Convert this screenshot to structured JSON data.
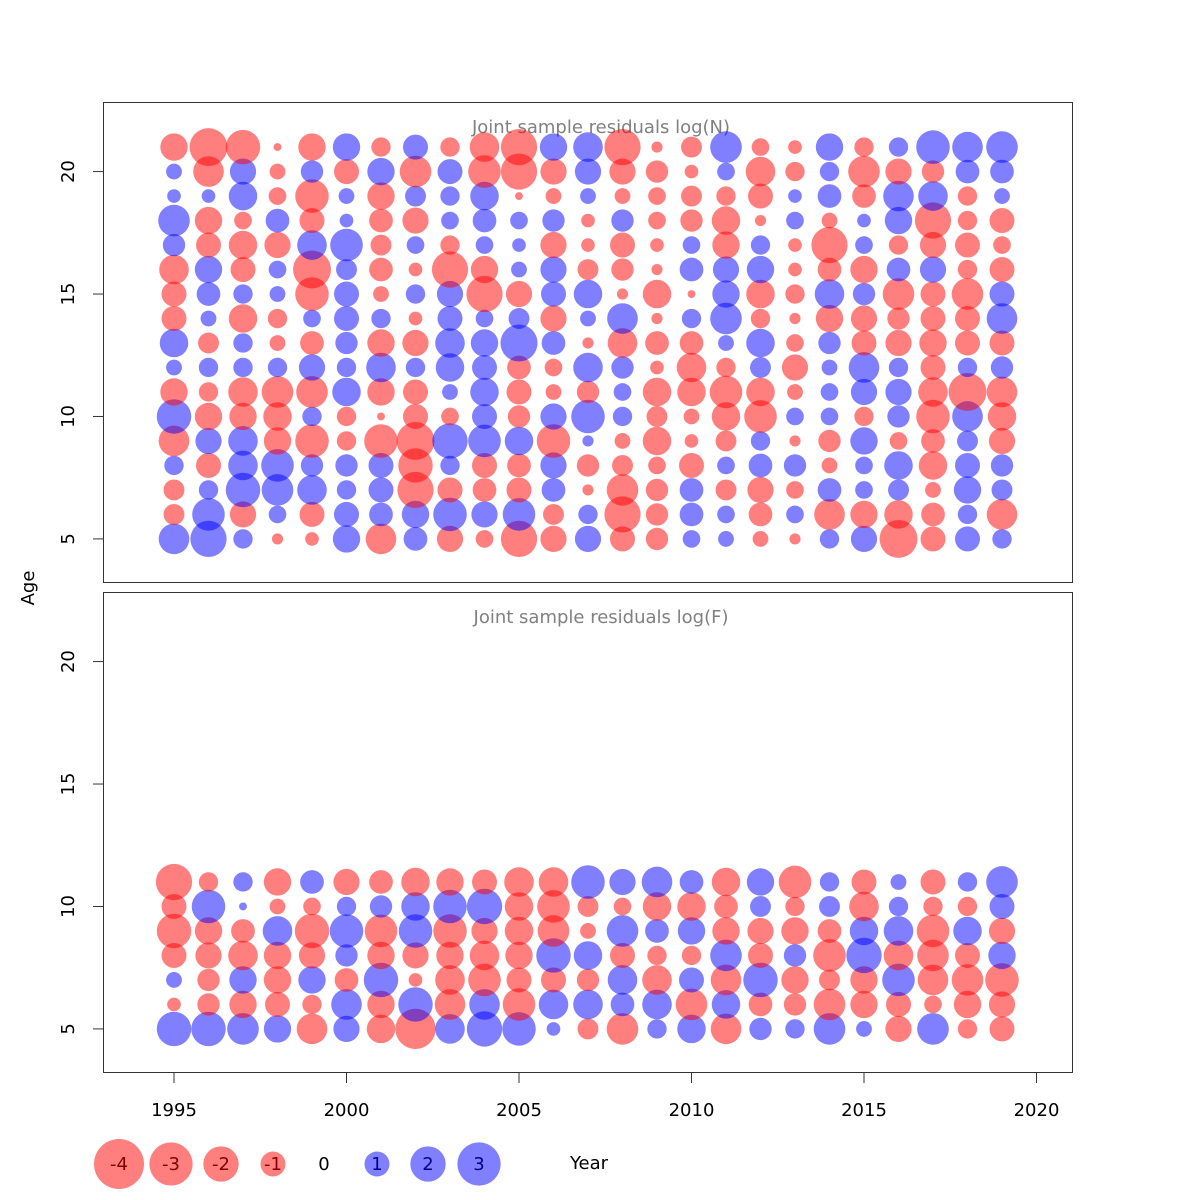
{
  "chart_data": {
    "type": "scatter",
    "subtype": "bubble",
    "xlabel": "Year",
    "ylabel": "Age",
    "xlim": [
      1993,
      2021
    ],
    "ylim": [
      3.2,
      22.8
    ],
    "x_ticks": [
      1995,
      2000,
      2005,
      2010,
      2015,
      2020
    ],
    "y_ticks": [
      5,
      10,
      15,
      20
    ],
    "colors": {
      "positive": "#0000ff",
      "negative": "#ff0000",
      "opacity": 0.5
    },
    "legend": [
      {
        "label": "-4",
        "value": -4
      },
      {
        "label": "-3",
        "value": -3
      },
      {
        "label": "-2",
        "value": -2
      },
      {
        "label": "-1",
        "value": -1
      },
      {
        "label": "0",
        "value": 0
      },
      {
        "label": "1",
        "value": 1
      },
      {
        "label": "2",
        "value": 2
      },
      {
        "label": "3",
        "value": 3
      }
    ],
    "panels": [
      {
        "title": "Joint sample residuals log(N)",
        "years": [
          1995,
          1996,
          1997,
          1998,
          1999,
          2000,
          2001,
          2002,
          2003,
          2004,
          2005,
          2006,
          2007,
          2008,
          2009,
          2010,
          2011,
          2012,
          2013,
          2014,
          2015,
          2016,
          2017,
          2018,
          2019
        ],
        "ages": [
          5,
          6,
          7,
          8,
          9,
          10,
          11,
          12,
          13,
          14,
          15,
          16,
          17,
          18,
          19,
          20,
          21
        ],
        "residuals": [
          [
            1.5,
            -0.7,
            -0.7,
            0.6,
            -1.5,
            1.9,
            -1.2,
            0.4,
            1.3,
            -1.0,
            -1.0,
            -1.4,
            0.8,
            1.6,
            0.3,
            0.4,
            -1.2
          ],
          [
            2.1,
            1.7,
            0.6,
            -1.0,
            1.1,
            -1.2,
            -0.6,
            0.6,
            -0.7,
            0.4,
            0.9,
            1.2,
            -1.0,
            -1.2,
            0.3,
            -1.5,
            -2.3
          ],
          [
            0.6,
            -1.1,
            1.9,
            1.4,
            1.4,
            -1.2,
            -1.4,
            0.6,
            0.6,
            -1.3,
            0.6,
            -1.0,
            -1.3,
            -0.5,
            1.3,
            1.1,
            -1.9
          ],
          [
            -0.2,
            0.5,
            1.6,
            1.7,
            -1.2,
            -1.3,
            -1.6,
            0.6,
            -0.4,
            -0.6,
            0.4,
            0.5,
            -1.1,
            0.9,
            -0.5,
            -0.4,
            -0.1
          ],
          [
            -0.3,
            -1.0,
            1.4,
            0.8,
            -1.8,
            0.6,
            -1.6,
            1.1,
            -0.9,
            0.5,
            -1.8,
            -2.3,
            1.4,
            -1.0,
            -1.8,
            0.8,
            -1.2
          ],
          [
            1.2,
            1.0,
            0.6,
            0.8,
            -0.6,
            -0.6,
            1.3,
            0.6,
            0.8,
            1.0,
            1.0,
            0.7,
            1.7,
            0.3,
            0.4,
            -1.0,
            1.2
          ],
          [
            -1.5,
            0.9,
            1.0,
            1.0,
            -1.8,
            -0.1,
            -1.2,
            1.4,
            -1.2,
            0.6,
            -0.4,
            -0.9,
            -0.7,
            -0.9,
            -1.2,
            1.2,
            -0.6
          ],
          [
            0.9,
            1.2,
            -2.1,
            -1.9,
            -2.3,
            -1.0,
            -1.0,
            0.6,
            -1.1,
            -0.3,
            0.6,
            -0.3,
            0.5,
            -1.1,
            0.7,
            -1.6,
            1.0
          ],
          [
            -1.1,
            1.8,
            -1.0,
            0.6,
            2.0,
            -0.5,
            0.4,
            1.3,
            1.4,
            1.0,
            1.1,
            -2.1,
            -0.6,
            0.5,
            0.6,
            1.0,
            -0.6
          ],
          [
            -0.5,
            1.1,
            -0.9,
            -1.0,
            1.7,
            1.0,
            1.3,
            1.0,
            1.2,
            0.5,
            -2.1,
            -1.2,
            0.5,
            0.9,
            1.3,
            -1.7,
            -1.4
          ],
          [
            -2.1,
            1.7,
            -1.0,
            -0.9,
            1.3,
            -0.8,
            -1.0,
            -0.9,
            2.2,
            0.7,
            -1.1,
            0.4,
            0.3,
            0.5,
            -0.1,
            -2.1,
            -2.1
          ],
          [
            -1.1,
            -0.7,
            0.9,
            1.1,
            -1.8,
            1.1,
            -0.4,
            -0.5,
            0.9,
            -1.1,
            1.0,
            1.1,
            -1.1,
            0.8,
            -0.4,
            -1.1,
            1.2
          ],
          [
            1.1,
            0.6,
            -0.2,
            -0.8,
            0.2,
            1.8,
            -0.8,
            1.4,
            -0.2,
            0.4,
            1.3,
            -0.7,
            -0.3,
            -0.3,
            0.4,
            1.1,
            1.4
          ],
          [
            -1.0,
            -2.1,
            -1.6,
            -0.7,
            -0.4,
            0.6,
            0.5,
            0.8,
            -1.4,
            1.5,
            -0.2,
            -0.8,
            -1.0,
            0.8,
            -0.4,
            -1.1,
            -2.1
          ],
          [
            -0.8,
            -0.8,
            -0.8,
            -0.5,
            -1.3,
            -0.7,
            -1.3,
            -0.3,
            -0.9,
            -0.2,
            -1.3,
            -0.2,
            -0.3,
            -0.5,
            -0.5,
            -0.8,
            -0.2
          ],
          [
            0.5,
            0.9,
            0.9,
            -1.0,
            -0.3,
            -0.4,
            -1.3,
            -1.4,
            -0.9,
            0.6,
            -0.1,
            0.9,
            0.5,
            -0.8,
            -0.7,
            -0.3,
            -0.7
          ],
          [
            0.4,
            0.5,
            -0.7,
            0.5,
            -0.7,
            -1.3,
            -1.7,
            -0.6,
            0.4,
            1.6,
            1.2,
            1.1,
            -1.2,
            -1.3,
            -0.6,
            0.5,
            1.6
          ],
          [
            -0.4,
            -0.9,
            -1.1,
            0.9,
            0.6,
            -1.7,
            -1.3,
            0.7,
            1.3,
            -0.6,
            -1.3,
            1.2,
            0.6,
            -0.2,
            -1.0,
            -1.4,
            -0.5
          ],
          [
            -0.2,
            0.5,
            -0.5,
            0.8,
            -0.2,
            0.5,
            -0.4,
            -1.1,
            -0.5,
            -0.2,
            -0.6,
            -0.3,
            -0.3,
            0.5,
            0.3,
            -0.6,
            -0.3
          ],
          [
            0.6,
            -1.5,
            0.9,
            -0.4,
            -0.8,
            0.5,
            0.5,
            0.4,
            0.8,
            -1.2,
            1.4,
            -0.9,
            -2.1,
            -0.4,
            0.9,
            0.6,
            1.2
          ],
          [
            1.1,
            -1.2,
            0.5,
            0.5,
            1.2,
            -0.6,
            1.1,
            1.5,
            -1.0,
            -1.1,
            0.8,
            -1.2,
            0.5,
            0.3,
            -0.9,
            -1.6,
            -0.6
          ],
          [
            -2.3,
            -1.3,
            0.7,
            1.3,
            -0.5,
            0.8,
            1.1,
            0.6,
            -1.1,
            -0.8,
            -1.6,
            0.9,
            -0.6,
            1.2,
            1.5,
            -1.1,
            0.6
          ],
          [
            -1.0,
            -0.9,
            -0.4,
            -1.3,
            -0.9,
            -1.8,
            -1.4,
            -1.0,
            -1.2,
            -1.0,
            -1.0,
            1.1,
            -1.1,
            -2.1,
            1.4,
            -0.8,
            1.8
          ],
          [
            1.0,
            0.6,
            1.2,
            1.0,
            0.7,
            1.5,
            -2.3,
            0.6,
            -1.0,
            -1.0,
            -1.6,
            -0.6,
            -1.0,
            -0.6,
            -0.6,
            0.9,
            1.5
          ],
          [
            0.6,
            -1.5,
            0.7,
            0.8,
            -1.1,
            -1.3,
            -1.5,
            0.8,
            -1.0,
            1.5,
            1.0,
            -1.0,
            -0.5,
            -1.0,
            0.4,
            0.9,
            1.6
          ]
        ]
      },
      {
        "title": "Joint sample residuals log(F)",
        "years": [
          1995,
          1996,
          1997,
          1998,
          1999,
          2000,
          2001,
          2002,
          2003,
          2004,
          2005,
          2006,
          2007,
          2008,
          2009,
          2010,
          2011,
          2012,
          2013,
          2014,
          2015,
          2016,
          2017,
          2018,
          2019
        ],
        "ages": [
          5,
          6,
          7,
          8,
          9,
          10,
          11
        ],
        "residuals": [
          [
            1.9,
            -0.3,
            0.4,
            -1.0,
            -1.9,
            -1.0,
            -2.1
          ],
          [
            1.9,
            -0.8,
            -0.8,
            -1.1,
            -1.2,
            1.8,
            -0.6
          ],
          [
            1.6,
            -1.2,
            1.2,
            -1.4,
            -0.9,
            0.1,
            0.6
          ],
          [
            1.2,
            -1.0,
            -1.2,
            -1.2,
            1.4,
            -0.4,
            -1.2
          ],
          [
            -1.5,
            -0.6,
            1.2,
            -1.1,
            -1.9,
            -0.5,
            0.9
          ],
          [
            1.1,
            1.5,
            -0.9,
            0.8,
            1.8,
            0.6,
            -1.1
          ],
          [
            -1.3,
            -1.2,
            1.9,
            -1.2,
            -1.7,
            0.8,
            -0.9
          ],
          [
            -2.6,
            1.9,
            -0.3,
            -1.1,
            1.8,
            1.3,
            -1.3
          ],
          [
            1.4,
            -1.5,
            -1.4,
            -1.2,
            -1.8,
            1.8,
            -1.2
          ],
          [
            2.0,
            1.5,
            -1.7,
            -1.4,
            -1.1,
            2.0,
            -1.0
          ],
          [
            1.8,
            -1.7,
            -1.0,
            -1.2,
            -1.3,
            -1.3,
            -1.4
          ],
          [
            0.3,
            1.4,
            -1.0,
            1.9,
            -1.6,
            -1.7,
            -1.4
          ],
          [
            -0.7,
            1.4,
            -0.8,
            1.3,
            -0.4,
            -0.7,
            1.8
          ],
          [
            -1.6,
            0.9,
            1.4,
            -1.0,
            1.6,
            -0.5,
            1.1
          ],
          [
            0.6,
            1.4,
            -1.4,
            -0.6,
            0.9,
            -1.3,
            1.5
          ],
          [
            1.3,
            -1.6,
            1.0,
            -0.6,
            1.2,
            -1.3,
            0.9
          ],
          [
            -1.5,
            1.3,
            -1.5,
            1.6,
            -1.2,
            -0.9,
            -1.3
          ],
          [
            0.8,
            -0.9,
            1.9,
            -1.0,
            -1.1,
            0.7,
            1.2
          ],
          [
            0.6,
            -0.8,
            -1.2,
            0.8,
            -1.2,
            -0.6,
            -1.7
          ],
          [
            1.6,
            -1.6,
            -0.7,
            -1.7,
            -0.9,
            0.7,
            0.6
          ],
          [
            0.4,
            -1.2,
            -1.2,
            2.0,
            1.3,
            -1.4,
            -1.0
          ],
          [
            -1.1,
            -1.0,
            1.7,
            -1.4,
            1.4,
            0.6,
            0.4
          ],
          [
            1.6,
            -0.5,
            -1.5,
            -1.6,
            -1.7,
            -0.6,
            -1.0
          ],
          [
            -0.6,
            -1.2,
            -1.6,
            -1.0,
            1.3,
            -0.6,
            0.6
          ],
          [
            -1.0,
            -1.1,
            -1.8,
            1.2,
            -1.1,
            1.0,
            1.6
          ]
        ]
      }
    ]
  }
}
